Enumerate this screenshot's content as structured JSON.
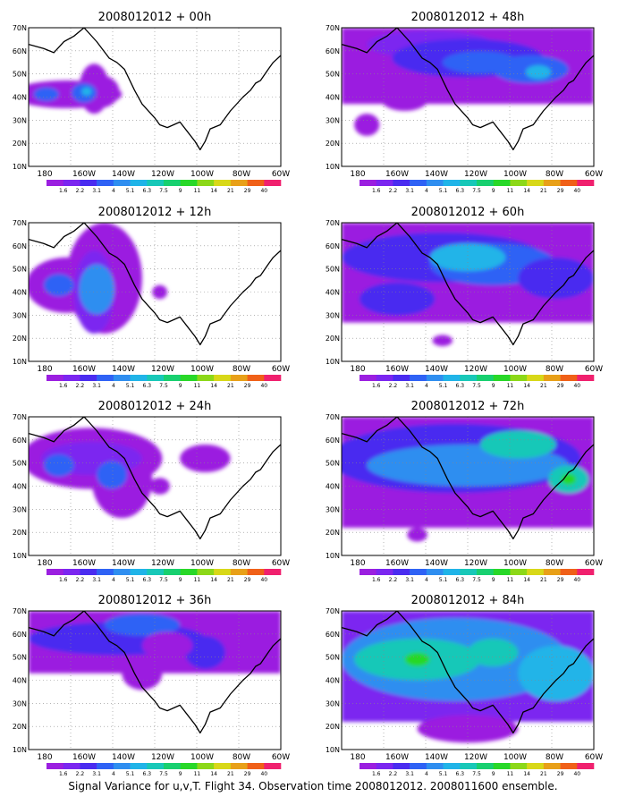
{
  "figure": {
    "caption": "Signal Variance for u,v,T. Flight 34. Observation time 2008012012. 2008011600 ensemble."
  },
  "axes": {
    "lat_labels": [
      "10N",
      "20N",
      "30N",
      "40N",
      "50N",
      "60N",
      "70N"
    ],
    "lon_labels": [
      "180",
      "160W",
      "140W",
      "120W",
      "100W",
      "80W",
      "60W"
    ]
  },
  "colorbar": {
    "labels": [
      "1.6",
      "2.2",
      "3.1",
      "4",
      "5.1",
      "6.3",
      "7.5",
      "9",
      "11",
      "14",
      "21",
      "29",
      "40"
    ],
    "colors": [
      "#9b1fe0",
      "#7b26f0",
      "#4a2cf0",
      "#2f62f5",
      "#2f8ef0",
      "#20b4e8",
      "#18c8b8",
      "#18d070",
      "#28d828",
      "#8cd818",
      "#d8d818",
      "#e8a018",
      "#f06018",
      "#f0206e"
    ]
  },
  "panels": [
    {
      "title": "2008012012 + 00h"
    },
    {
      "title": "2008012012 + 48h"
    },
    {
      "title": "2008012012 + 12h"
    },
    {
      "title": "2008012012 + 60h"
    },
    {
      "title": "2008012012 + 24h"
    },
    {
      "title": "2008012012 + 72h"
    },
    {
      "title": "2008012012 + 36h"
    },
    {
      "title": "2008012012 + 84h"
    }
  ]
}
